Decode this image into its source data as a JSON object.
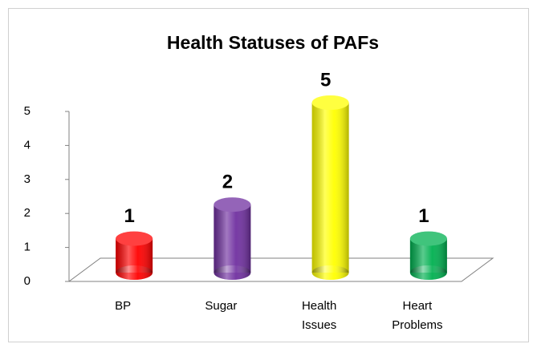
{
  "chart_data": {
    "type": "bar",
    "title": "Health Statuses of PAFs",
    "categories": [
      "BP",
      "Sugar",
      "Health Issues",
      "Heart Problems"
    ],
    "values": [
      1,
      2,
      5,
      1
    ],
    "colors": [
      "#ff0000",
      "#7030a0",
      "#ffff00",
      "#00b050"
    ],
    "ylim": [
      0,
      5
    ],
    "yticks": [
      0,
      1,
      2,
      3,
      4,
      5
    ]
  }
}
